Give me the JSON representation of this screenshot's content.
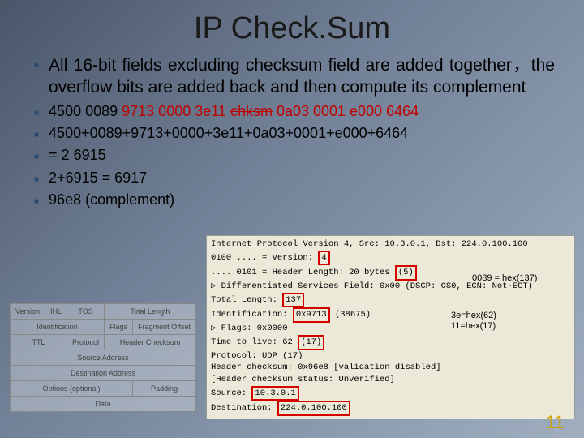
{
  "title": "IP Check.Sum",
  "main_bullet": "All 16-bit fields excluding checksum field are added together，the overflow bits are added back and then compute its complement",
  "hex_line": {
    "segs": [
      {
        "t": "4500 0089 ",
        "c": "black"
      },
      {
        "t": "9713 0000 3e11 ",
        "c": "red"
      },
      {
        "t": "chksm",
        "c": "red",
        "strike": true
      },
      {
        "t": " 0a03 0001 e000 6464",
        "c": "red"
      }
    ]
  },
  "sub_bullets": [
    "4500+0089+9713+0000+3e11+0a03+0001+e000+6464",
    "= 2 6915",
    "2+6915 = 6917",
    "96e8 (complement)"
  ],
  "header_fields": {
    "r1": [
      "Version",
      "IHL",
      "TOS",
      "Total Length"
    ],
    "r2": [
      "Identification",
      "Flags",
      "Fragment Offset"
    ],
    "r3": [
      "TTL",
      "Protocol",
      "Header Checksum"
    ],
    "r4": "Source Address",
    "r5": "Destination Address",
    "r6": [
      "Options (optional)",
      "Padding"
    ],
    "r7": "Data"
  },
  "wireshark": {
    "title": "Internet Protocol Version 4, Src: 10.3.0.1, Dst: 224.0.100.100",
    "lines": [
      {
        "pre": "  0100 .... = Version: ",
        "box": "4",
        "post": ""
      },
      {
        "pre": "  .... 0101 = Header Length: 20 bytes ",
        "box": "(5)",
        "post": ""
      },
      {
        "pre": "▷ Differentiated Services Field: 0x00 (DSCP: CS0, ECN: Not-ECT)",
        "box": "",
        "post": ""
      },
      {
        "pre": "  Total Length: ",
        "box": "137",
        "post": ""
      },
      {
        "pre": "  Identification: ",
        "box": "0x9713",
        "post": " (38675)"
      },
      {
        "pre": "▷ Flags: 0x0000",
        "box": "",
        "post": ""
      },
      {
        "pre": "  Time to live: 62 ",
        "box": "(17)",
        "post": ""
      },
      {
        "pre": "  Protocol: UDP (17)",
        "box": "",
        "post": ""
      },
      {
        "pre": "  Header checksum: 0x96e8 [validation disabled]",
        "box": "",
        "post": ""
      },
      {
        "pre": "  [Header checksum status: Unverified]",
        "box": "",
        "post": ""
      },
      {
        "pre": "  Source: ",
        "box": "10.3.0.1",
        "post": ""
      },
      {
        "pre": "  Destination: ",
        "box": "224.0.100.100",
        "post": ""
      }
    ]
  },
  "annotations": {
    "a1": "0089 = hex(137)",
    "a2": "3e=hex(62)",
    "a3": "11=hex(17)"
  },
  "page_number": "11",
  "colors": {
    "red": "#c00000",
    "boxred": "#d40000",
    "yellow": "#c9a200"
  }
}
